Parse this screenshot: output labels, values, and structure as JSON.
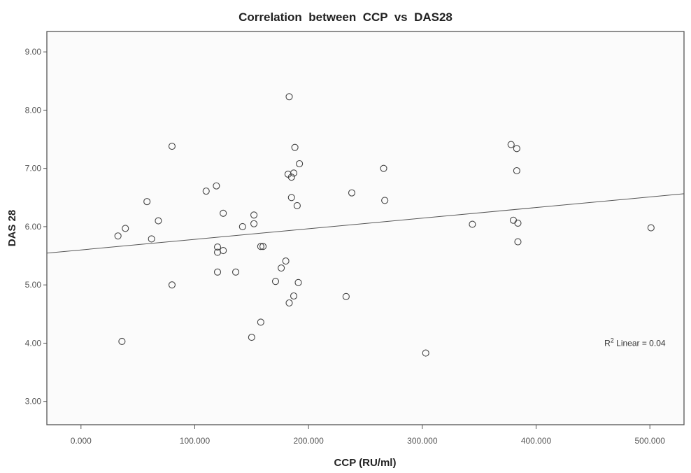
{
  "chart_data": {
    "type": "scatter",
    "title": "Correlation  between  CCP  vs  DAS28",
    "xlabel": "CCP (RU/ml)",
    "ylabel": "DAS 28",
    "xlim": [
      -30,
      530
    ],
    "ylim": [
      2.6,
      9.35
    ],
    "xticks": [
      0,
      100,
      200,
      300,
      400,
      500
    ],
    "xtick_labels": [
      "0.000",
      "100.000",
      "200.000",
      "300.000",
      "400.000",
      "500.000"
    ],
    "yticks": [
      3,
      4,
      5,
      6,
      7,
      8,
      9
    ],
    "ytick_labels": [
      "3.00",
      "4.00",
      "5.00",
      "6.00",
      "7.00",
      "8.00",
      "9.00"
    ],
    "grid": false,
    "points": [
      [
        32.5,
        5.84
      ],
      [
        39,
        5.97
      ],
      [
        36,
        4.03
      ],
      [
        58,
        6.43
      ],
      [
        62,
        5.79
      ],
      [
        68,
        6.1
      ],
      [
        80,
        7.38
      ],
      [
        80,
        5.0
      ],
      [
        110,
        6.61
      ],
      [
        119,
        6.7
      ],
      [
        120,
        5.65
      ],
      [
        120,
        5.56
      ],
      [
        120,
        5.22
      ],
      [
        125,
        6.23
      ],
      [
        125,
        5.59
      ],
      [
        136,
        5.22
      ],
      [
        142,
        6.0
      ],
      [
        152,
        6.2
      ],
      [
        152,
        6.05
      ],
      [
        158,
        5.66
      ],
      [
        160,
        5.66
      ],
      [
        150,
        4.1
      ],
      [
        158,
        4.36
      ],
      [
        171,
        5.06
      ],
      [
        176,
        5.29
      ],
      [
        180,
        5.41
      ],
      [
        183,
        8.23
      ],
      [
        182,
        6.9
      ],
      [
        185,
        6.85
      ],
      [
        187,
        6.92
      ],
      [
        188,
        7.36
      ],
      [
        192,
        7.08
      ],
      [
        185,
        6.5
      ],
      [
        190,
        6.36
      ],
      [
        191,
        5.04
      ],
      [
        187,
        4.81
      ],
      [
        183,
        4.69
      ],
      [
        233,
        4.8
      ],
      [
        238,
        6.58
      ],
      [
        266,
        7.0
      ],
      [
        267,
        6.45
      ],
      [
        303,
        3.83
      ],
      [
        344,
        6.04
      ],
      [
        378,
        7.41
      ],
      [
        383,
        7.34
      ],
      [
        383,
        6.96
      ],
      [
        380,
        6.11
      ],
      [
        384,
        6.06
      ],
      [
        384,
        5.74
      ],
      [
        501,
        5.98
      ]
    ],
    "fit_line": {
      "type": "linear",
      "intercept": 5.6,
      "slope": 0.00182
    },
    "annotation": {
      "prefix": "R",
      "sup": "2",
      "text": " Linear = 0.04",
      "x": 460,
      "y": 3.95
    }
  }
}
